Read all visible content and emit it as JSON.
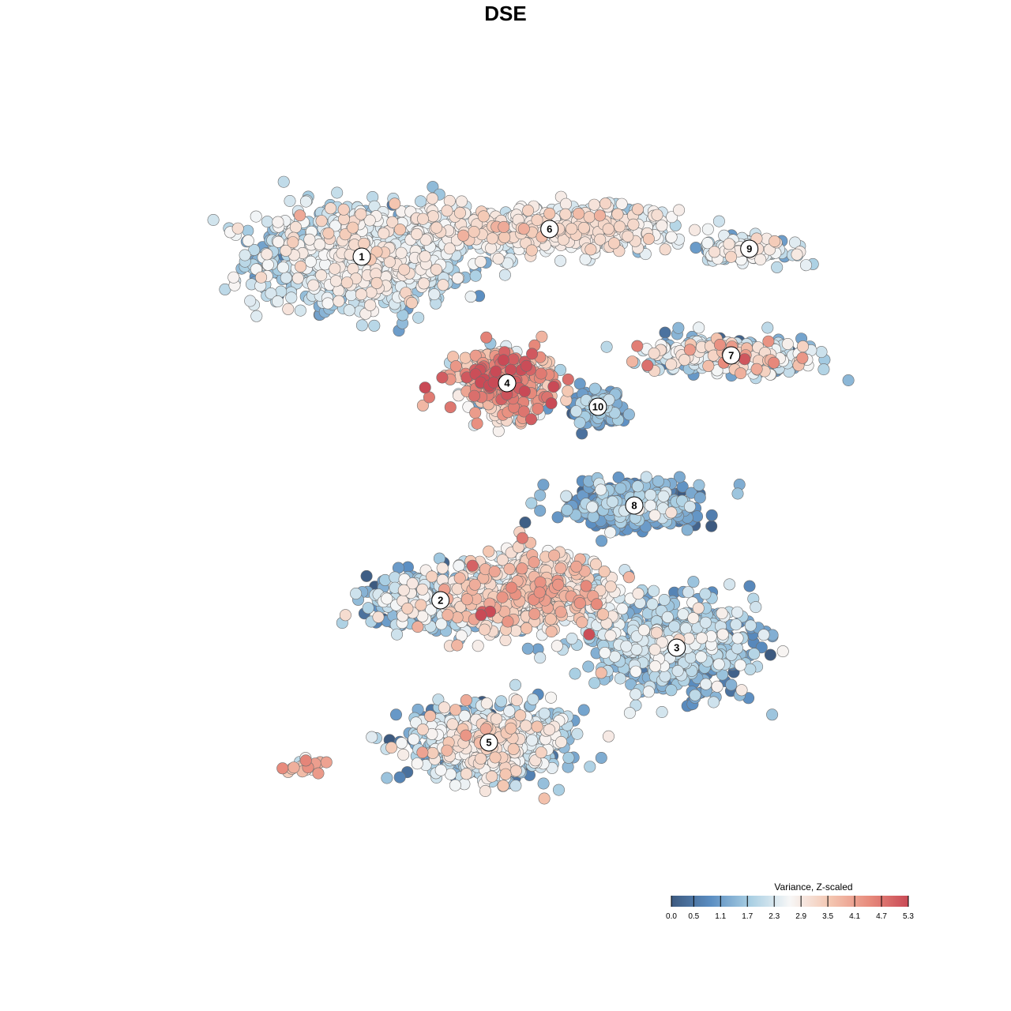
{
  "title": "DSE",
  "colors": {
    "scale": [
      "#3d5a80",
      "#5b8ec2",
      "#a9cfe3",
      "#f7f7f7",
      "#f4c7b2",
      "#e88c7d",
      "#c94a56"
    ]
  },
  "chart_data": {
    "type": "scatter",
    "title": "DSE",
    "xlabel": "",
    "ylabel": "",
    "grid": false,
    "legend": {
      "title": "Variance, Z-scaled",
      "placement": "bottom-right",
      "range": [
        0.0,
        5.3
      ],
      "ticks": [
        "0.0",
        "0.5",
        "1.1",
        "1.7",
        "2.3",
        "2.9",
        "3.5",
        "4.1",
        "4.7",
        "5.3"
      ]
    },
    "clusters": [
      {
        "label": "1",
        "x": -27,
        "y": 77,
        "spread": [
          15.5,
          11.5
        ],
        "n": 1100,
        "mean": 2.1,
        "sd": 0.55
      },
      {
        "label": "2",
        "x": -14,
        "y": -10,
        "spread": [
          11,
          6
        ],
        "n": 380,
        "mean": 1.6,
        "sd": 0.8
      },
      {
        "label": "3",
        "x": 25,
        "y": -22,
        "spread": [
          12,
          10
        ],
        "n": 650,
        "mean": 1.5,
        "sd": 0.6
      },
      {
        "label": "4",
        "x": -3,
        "y": 45,
        "spread": [
          7,
          7
        ],
        "n": 420,
        "mean": 3.5,
        "sd": 0.9
      },
      {
        "label": "5",
        "x": -6,
        "y": -46,
        "spread": [
          11,
          8
        ],
        "n": 850,
        "mean": 1.9,
        "sd": 0.8
      },
      {
        "label": "6",
        "x": 4,
        "y": 84,
        "spread": [
          18,
          5
        ],
        "n": 700,
        "mean": 2.5,
        "sd": 0.5
      },
      {
        "label": "7",
        "x": 34,
        "y": 52,
        "spread": [
          13,
          4
        ],
        "n": 320,
        "mean": 2.1,
        "sd": 0.8
      },
      {
        "label": "8",
        "x": 18,
        "y": 14,
        "spread": [
          10,
          5
        ],
        "n": 380,
        "mean": 1.1,
        "sd": 0.6
      },
      {
        "label": "9",
        "x": 37,
        "y": 79,
        "spread": [
          7,
          3
        ],
        "n": 160,
        "mean": 2.2,
        "sd": 0.5
      },
      {
        "label": "10",
        "x": 12,
        "y": 39,
        "spread": [
          4,
          4
        ],
        "n": 110,
        "mean": 1.2,
        "sd": 0.5
      },
      {
        "label": "",
        "x": 1,
        "y": -8,
        "spread": [
          12,
          9
        ],
        "n": 650,
        "mean": 2.7,
        "sd": 0.8
      },
      {
        "label": "",
        "x": -36,
        "y": -52,
        "spread": [
          3,
          2
        ],
        "n": 22,
        "mean": 3.4,
        "sd": 0.7
      }
    ],
    "xlim": [
      -60,
      60
    ],
    "ylim": [
      -75,
      105
    ]
  }
}
